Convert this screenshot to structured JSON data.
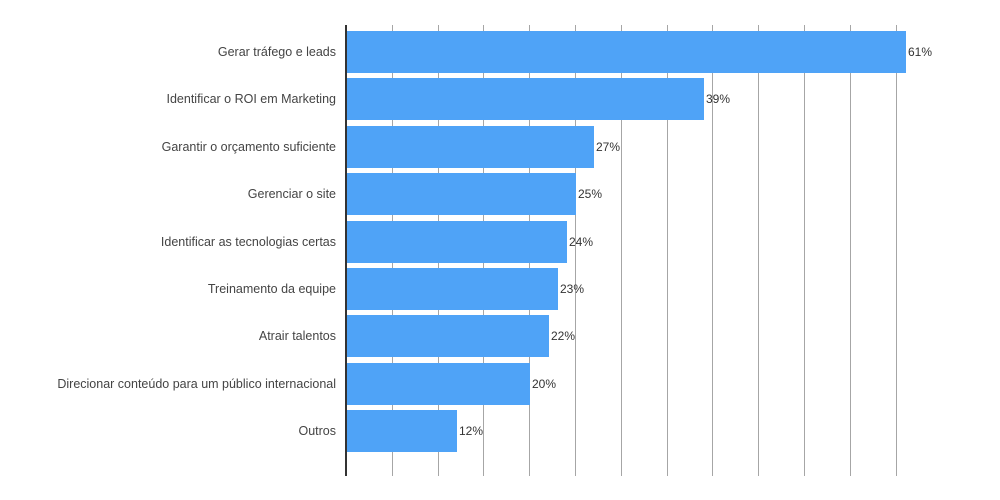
{
  "chart_data": {
    "type": "bar",
    "orientation": "horizontal",
    "title": "",
    "xlabel": "",
    "ylabel": "",
    "categories": [
      "Gerar tráfego e leads",
      "Identificar o ROI em Marketing",
      "Garantir o orçamento suficiente",
      "Gerenciar o site",
      "Identificar as tecnologias certas",
      "Treinamento da equipe",
      "Atrair talentos",
      "Direcionar conteúdo para um público internacional",
      "Outros"
    ],
    "values": [
      61,
      39,
      27,
      25,
      24,
      23,
      22,
      20,
      12
    ],
    "value_labels": [
      "61%",
      "39%",
      "27%",
      "25%",
      "24%",
      "23%",
      "22%",
      "20%",
      "12%"
    ],
    "unit": "%",
    "xlim": [
      0,
      60
    ],
    "grid": true,
    "grid_interval": 5,
    "x_tick_labels_visible": false,
    "legend": null,
    "bar_color": "#4fa3f7"
  }
}
